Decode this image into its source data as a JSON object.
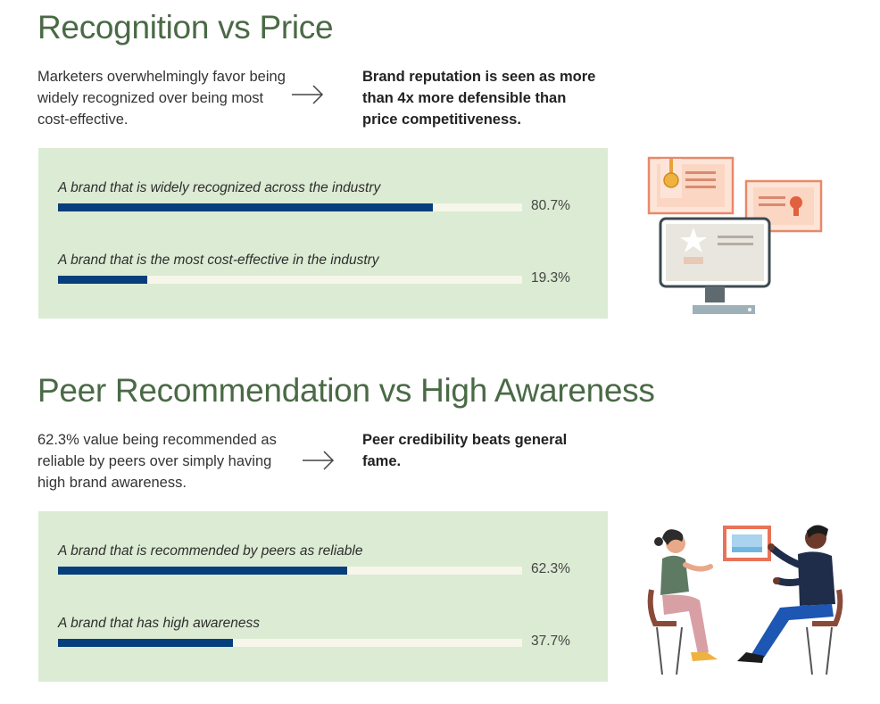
{
  "chart_data": [
    {
      "type": "bar",
      "orientation": "horizontal",
      "title": "Recognition vs Price",
      "description": "Marketers overwhelmingly favor being widely recognized over being most cost-effective.",
      "callout": "Brand reputation is seen as more than 4x more defensible than price competitiveness.",
      "unit": "%",
      "xlim": [
        0,
        100
      ],
      "categories": [
        "A brand that is widely recognized across the industry",
        "A brand that is the most cost-effective in the industry"
      ],
      "values": [
        80.7,
        19.3
      ],
      "value_labels": [
        "80.7%",
        "19.3%"
      ]
    },
    {
      "type": "bar",
      "orientation": "horizontal",
      "title": "Peer Recommendation vs High Awareness",
      "description": "62.3% value being recommended as reliable by peers over simply having high brand awareness.",
      "callout": "Peer credibility beats general fame.",
      "unit": "%",
      "xlim": [
        0,
        100
      ],
      "categories": [
        "A brand that is recommended by peers as reliable",
        "A brand that has high awareness"
      ],
      "values": [
        62.3,
        37.7
      ],
      "value_labels": [
        "62.3%",
        "37.7%"
      ]
    }
  ],
  "colors": {
    "heading": "#4a6a46",
    "panel": "#dcebd3",
    "bar_fill": "#063f7b",
    "bar_track": "#f6f6ea"
  },
  "icons": {
    "arrow": "arrow-right-icon",
    "illustration1": "certificate-monitor-illustration",
    "illustration2": "two-people-meeting-illustration"
  }
}
